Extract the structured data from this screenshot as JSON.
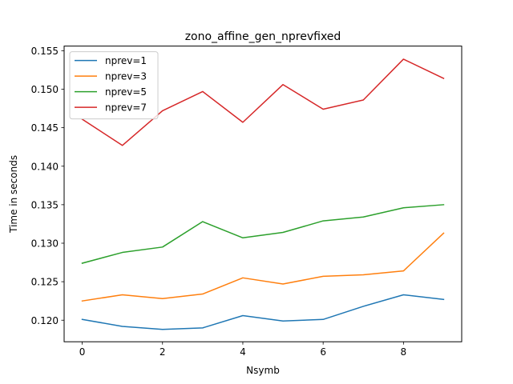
{
  "chart_data": {
    "type": "line",
    "title": "zono_affine_gen_nprevfixed",
    "xlabel": "Nsymb",
    "ylabel": "Time in seconds",
    "x": [
      0,
      1,
      2,
      3,
      4,
      5,
      6,
      7,
      8,
      9
    ],
    "xlim": [
      -0.45,
      9.45
    ],
    "ylim": [
      0.1172,
      0.1556
    ],
    "xticks": [
      0,
      2,
      4,
      6,
      8
    ],
    "yticks": [
      0.12,
      0.125,
      0.13,
      0.135,
      0.14,
      0.145,
      0.15,
      0.155
    ],
    "ytick_labels": [
      "0.120",
      "0.125",
      "0.130",
      "0.135",
      "0.140",
      "0.145",
      "0.150",
      "0.155"
    ],
    "grid": false,
    "legend_position": "top-left",
    "series": [
      {
        "name": "nprev=1",
        "color": "#1f77b4",
        "values": [
          0.1201,
          0.1192,
          0.1188,
          0.119,
          0.1206,
          0.1199,
          0.1201,
          0.1218,
          0.1233,
          0.1227
        ]
      },
      {
        "name": "nprev=3",
        "color": "#ff7f0e",
        "values": [
          0.1225,
          0.1233,
          0.1228,
          0.1234,
          0.1255,
          0.1247,
          0.1257,
          0.1259,
          0.1264,
          0.1313
        ]
      },
      {
        "name": "nprev=5",
        "color": "#2ca02c",
        "values": [
          0.1274,
          0.1288,
          0.1295,
          0.1328,
          0.1307,
          0.1314,
          0.1329,
          0.1334,
          0.1346,
          0.135
        ]
      },
      {
        "name": "nprev=7",
        "color": "#d62728",
        "values": [
          0.1461,
          0.1427,
          0.1472,
          0.1497,
          0.1457,
          0.1506,
          0.1474,
          0.1486,
          0.1539,
          0.1514
        ]
      }
    ]
  }
}
